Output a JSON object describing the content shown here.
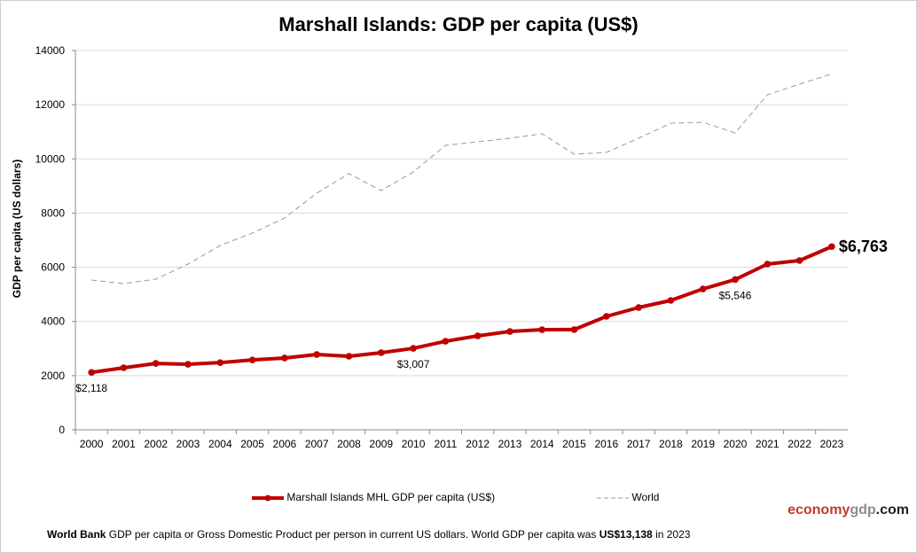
{
  "chart_data": {
    "type": "line",
    "title": "Marshall Islands: GDP per capita (US$)",
    "ylabel": "GDP per capita (US dollars)",
    "xlabel": "",
    "ylim": [
      0,
      14000
    ],
    "yticks": [
      0,
      2000,
      4000,
      6000,
      8000,
      10000,
      12000,
      14000
    ],
    "grid": true,
    "legend_placement": "bottom",
    "x": [
      2000,
      2001,
      2002,
      2003,
      2004,
      2005,
      2006,
      2007,
      2008,
      2009,
      2010,
      2011,
      2012,
      2013,
      2014,
      2015,
      2016,
      2017,
      2018,
      2019,
      2020,
      2021,
      2022,
      2023
    ],
    "series": [
      {
        "name": "Marshall Islands MHL GDP per capita (US$)",
        "color": "#c00000",
        "style": "solid-markers",
        "values": [
          2118,
          2290,
          2450,
          2420,
          2480,
          2580,
          2650,
          2780,
          2715,
          2846,
          3007,
          3270,
          3467,
          3630,
          3696,
          3700,
          4187,
          4514,
          4776,
          5200,
          5546,
          6117,
          6248,
          6763
        ]
      },
      {
        "name": "World",
        "color": "#999999",
        "style": "dashed",
        "values": [
          5528,
          5397,
          5561,
          6117,
          6804,
          7262,
          7818,
          8734,
          9454,
          8832,
          9519,
          10500,
          10631,
          10762,
          10926,
          10173,
          10239,
          10762,
          11318,
          11351,
          10958,
          12365,
          12758,
          13138
        ]
      }
    ],
    "annotations": [
      {
        "year": 2000,
        "label": "$2,118"
      },
      {
        "year": 2010,
        "label": "$3,007"
      },
      {
        "year": 2020,
        "label": "$5,546"
      },
      {
        "year": 2023,
        "label": "$6,763"
      }
    ]
  },
  "brand": {
    "part1": "economy",
    "part2": "gdp",
    "part3": ".com",
    "color1": "#c0392b",
    "color2": "#8c8c8c"
  },
  "footer": {
    "bold1": "World Bank",
    "text1": " GDP per capita or Gross Domestic Product per person  in current US dollars.   World GDP per capita was ",
    "bold2": "US$13,138",
    "text2": "  in 2023"
  }
}
